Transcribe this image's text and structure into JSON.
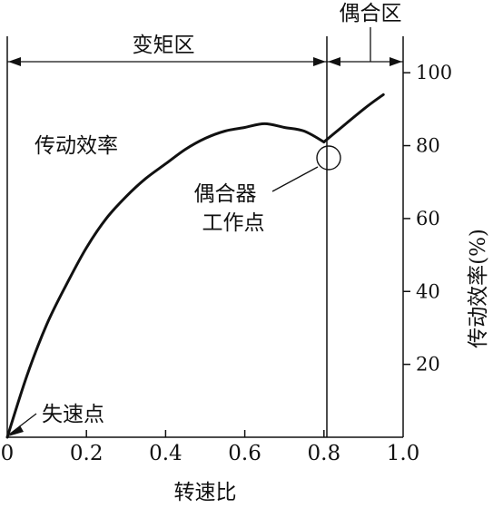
{
  "chart_data": {
    "type": "line",
    "title": "",
    "xlabel": "转速比",
    "ylabel": "传动效率(%)",
    "xlim": [
      0,
      1.0
    ],
    "ylim": [
      0,
      110
    ],
    "x_ticks": [
      "0",
      "0.2",
      "0.4",
      "0.6",
      "0.8",
      "1.0"
    ],
    "y_ticks": [
      "20",
      "40",
      "60",
      "80",
      "100"
    ],
    "x_tick_values": [
      0,
      0.2,
      0.4,
      0.6,
      0.8,
      1.0
    ],
    "y_tick_values": [
      20,
      40,
      60,
      80,
      100
    ],
    "grid": false,
    "series": [
      {
        "name": "传动效率",
        "x": [
          0,
          0.05,
          0.1,
          0.15,
          0.2,
          0.25,
          0.3,
          0.35,
          0.4,
          0.45,
          0.5,
          0.55,
          0.6,
          0.65,
          0.7,
          0.75,
          0.8
        ],
        "y": [
          0,
          17,
          31,
          42,
          52,
          60,
          66,
          71,
          75,
          79,
          82,
          84,
          85,
          86,
          85,
          84,
          81
        ]
      },
      {
        "name": "",
        "x": [
          0.8,
          0.9,
          0.95
        ],
        "y": [
          81,
          90,
          94
        ]
      }
    ],
    "regions": [
      {
        "label": "变矩区",
        "x_from": 0,
        "x_to": 0.8
      },
      {
        "label": "偶合区",
        "x_from": 0.8,
        "x_to": 1.0
      }
    ],
    "annotations": [
      {
        "text": "偶合器\n工作点",
        "x": 0.8,
        "y": 81
      },
      {
        "text": "失速点",
        "x": 0,
        "y": 0
      }
    ]
  }
}
